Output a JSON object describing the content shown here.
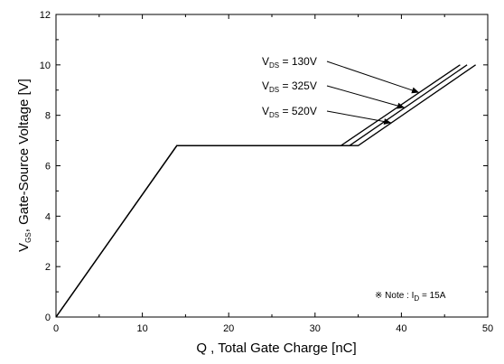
{
  "chart_data": {
    "type": "line",
    "xlabel": "Q , Total Gate Charge [nC]",
    "ylabel_main": "V",
    "ylabel_sub": "GS",
    "ylabel_rest": ", Gate-Source Voltage [V]",
    "xlim": [
      0,
      50
    ],
    "ylim": [
      0,
      12
    ],
    "xticks": [
      "0",
      "10",
      "20",
      "30",
      "40",
      "50"
    ],
    "yticks": [
      "0",
      "2",
      "4",
      "6",
      "8",
      "10",
      "12"
    ],
    "grid": false,
    "series": [
      {
        "label_main": "V",
        "label_sub": "DS",
        "label_rest": " = 130V",
        "x": [
          0,
          14,
          33,
          46.8
        ],
        "y": [
          0,
          6.8,
          6.8,
          10
        ]
      },
      {
        "label_main": "V",
        "label_sub": "DS",
        "label_rest": " = 325V",
        "x": [
          0,
          14,
          34,
          47.6
        ],
        "y": [
          0,
          6.8,
          6.8,
          10
        ]
      },
      {
        "label_main": "V",
        "label_sub": "DS",
        "label_rest": " = 520V",
        "x": [
          0,
          14,
          35,
          48.6
        ],
        "y": [
          0,
          6.8,
          6.8,
          10
        ]
      }
    ],
    "note": {
      "prefix": "※ Note : I",
      "sub": "D",
      "rest": " = 15A"
    }
  }
}
